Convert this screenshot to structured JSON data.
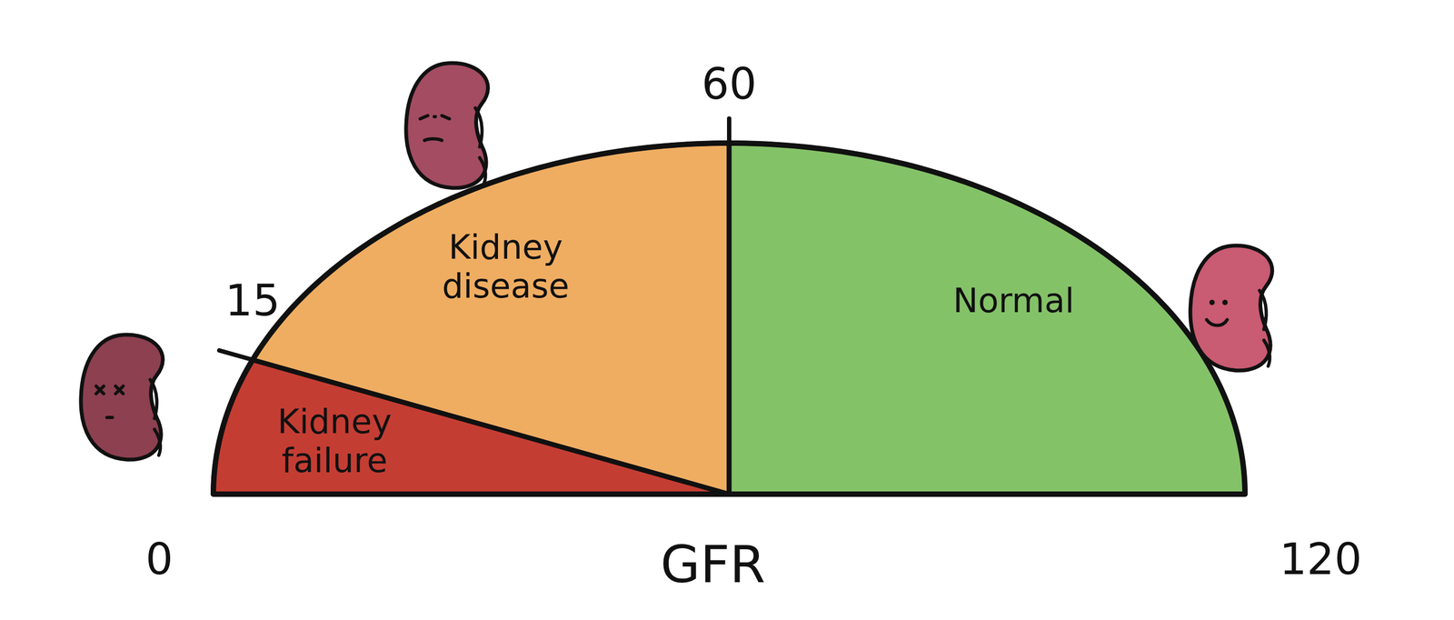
{
  "chart_data": {
    "type": "gauge",
    "x_label": "GFR",
    "xlim": [
      0,
      120
    ],
    "xticks": [
      0,
      15,
      60,
      120
    ],
    "categories": [
      "Kidney failure",
      "Kidney disease",
      "Normal"
    ],
    "ranges": [
      [
        0,
        15
      ],
      [
        15,
        60
      ],
      [
        60,
        120
      ]
    ],
    "colors": [
      "#c43d33",
      "#efad62",
      "#84c268"
    ]
  }
}
